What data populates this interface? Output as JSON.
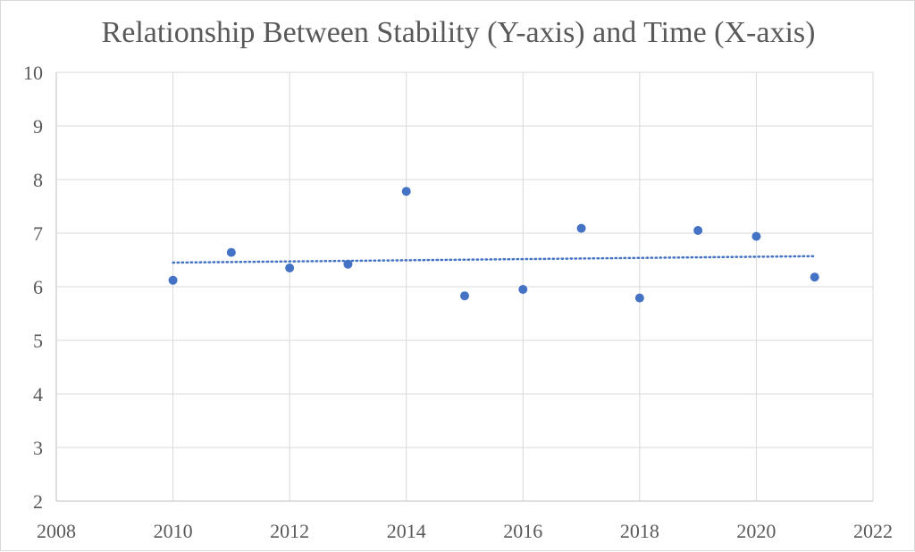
{
  "chart_data": {
    "type": "scatter",
    "title": "Relationship Between Stability (Y-axis) and Time (X-axis)",
    "xlabel": "",
    "ylabel": "",
    "xlim": [
      2008,
      2022
    ],
    "ylim": [
      2,
      10
    ],
    "x_ticks": [
      2008,
      2010,
      2012,
      2014,
      2016,
      2018,
      2020,
      2022
    ],
    "y_ticks": [
      2,
      3,
      4,
      5,
      6,
      7,
      8,
      9,
      10
    ],
    "grid": true,
    "legend": "none",
    "series": [
      {
        "color": "#4472c4",
        "points": [
          {
            "x": 2010,
            "y": 6.12
          },
          {
            "x": 2011,
            "y": 6.64
          },
          {
            "x": 2012,
            "y": 6.35
          },
          {
            "x": 2013,
            "y": 6.42
          },
          {
            "x": 2014,
            "y": 7.78
          },
          {
            "x": 2015,
            "y": 5.83
          },
          {
            "x": 2016,
            "y": 5.95
          },
          {
            "x": 2017,
            "y": 7.09
          },
          {
            "x": 2018,
            "y": 5.79
          },
          {
            "x": 2019,
            "y": 7.05
          },
          {
            "x": 2020,
            "y": 6.94
          },
          {
            "x": 2021,
            "y": 6.18
          }
        ]
      }
    ],
    "trendline": {
      "type": "linear",
      "style": "dotted",
      "color": "#4472c4",
      "from": {
        "x": 2010,
        "y": 6.45
      },
      "to": {
        "x": 2021,
        "y": 6.57
      }
    }
  }
}
